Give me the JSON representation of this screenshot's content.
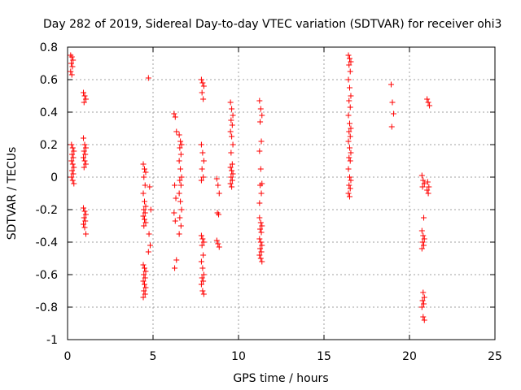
{
  "chart_data": {
    "type": "scatter",
    "title": "Day 282 of 2019, Sidereal Day-to-day VTEC variation (SDTVAR) for receiver ohi3",
    "xlabel": "GPS time / hours",
    "ylabel": "SDTVAR / TECUs",
    "xlim": [
      0,
      25
    ],
    "ylim": [
      -1,
      0.8
    ],
    "xticks": [
      0,
      5,
      10,
      15,
      20,
      25
    ],
    "xtick_labels": [
      "0",
      "5",
      "10",
      "15",
      "20",
      "25"
    ],
    "yticks": [
      -1,
      -0.8,
      -0.6,
      -0.4,
      -0.2,
      0,
      0.2,
      0.4,
      0.6,
      0.8
    ],
    "ytick_labels": [
      "-1",
      "-0.8",
      "-0.6",
      "-0.4",
      "-0.2",
      "0",
      "0.2",
      "0.4",
      "0.6",
      "0.8"
    ],
    "grid": true,
    "marker": "+",
    "color": "#ff0000",
    "clusters": [
      {
        "x": 0.25,
        "y": [
          0.75,
          0.74,
          0.72,
          0.7,
          0.68,
          0.65,
          0.63
        ]
      },
      {
        "x": 0.3,
        "y": [
          0.2,
          0.18,
          0.16,
          0.14,
          0.12,
          0.1,
          0.08,
          0.06,
          0.04,
          0.02,
          0.0,
          -0.02,
          -0.04
        ]
      },
      {
        "x": 1.0,
        "y": [
          0.52,
          0.5,
          0.48,
          0.46
        ]
      },
      {
        "x": 1.0,
        "y": [
          0.24,
          0.2,
          0.18,
          0.16,
          0.14,
          0.12,
          0.1,
          0.08,
          0.06
        ]
      },
      {
        "x": 1.0,
        "y": [
          -0.19,
          -0.21,
          -0.23,
          -0.25,
          -0.27,
          -0.29,
          -0.31,
          -0.35
        ]
      },
      {
        "x": 4.5,
        "y": [
          0.08,
          0.05,
          0.03,
          0.0,
          -0.05,
          -0.1,
          -0.15,
          -0.18,
          -0.2,
          -0.22,
          -0.24,
          -0.26,
          -0.28,
          -0.3
        ]
      },
      {
        "x": 4.5,
        "y": [
          -0.54,
          -0.56,
          -0.58,
          -0.6,
          -0.62,
          -0.64,
          -0.66,
          -0.68,
          -0.7,
          -0.72,
          -0.74
        ]
      },
      {
        "x": 4.8,
        "y": [
          0.61,
          -0.06,
          -0.2,
          -0.35,
          -0.42,
          -0.46
        ]
      },
      {
        "x": 6.3,
        "y": [
          0.39,
          0.37,
          0.28,
          -0.05,
          -0.13,
          -0.22,
          -0.27,
          -0.51,
          -0.56
        ]
      },
      {
        "x": 6.6,
        "y": [
          0.26,
          0.22,
          0.2,
          0.18,
          0.14,
          0.1,
          0.05,
          0.0,
          -0.02,
          -0.05,
          -0.1,
          -0.15,
          -0.2,
          -0.25,
          -0.3,
          -0.35
        ]
      },
      {
        "x": 7.9,
        "y": [
          0.6,
          0.58,
          0.56,
          0.52,
          0.48,
          0.2,
          0.15,
          0.1,
          0.05,
          0.0,
          -0.02
        ]
      },
      {
        "x": 7.9,
        "y": [
          -0.36,
          -0.38,
          -0.4,
          -0.42,
          -0.48,
          -0.52,
          -0.56,
          -0.6,
          -0.62,
          -0.64,
          -0.66,
          -0.7,
          -0.72
        ]
      },
      {
        "x": 8.8,
        "y": [
          -0.01,
          -0.05,
          -0.1,
          -0.22,
          -0.23,
          -0.39,
          -0.41,
          -0.43
        ]
      },
      {
        "x": 9.6,
        "y": [
          0.46,
          0.42,
          0.38,
          0.35,
          0.32,
          0.28,
          0.25,
          0.2,
          0.15,
          0.08,
          0.06,
          0.04,
          0.02,
          0.0,
          -0.02,
          -0.04,
          -0.06
        ]
      },
      {
        "x": 11.3,
        "y": [
          0.47,
          0.42,
          0.38,
          0.34,
          0.22,
          0.16,
          0.05,
          -0.04,
          -0.05,
          -0.1,
          -0.16
        ]
      },
      {
        "x": 11.3,
        "y": [
          -0.25,
          -0.28,
          -0.3,
          -0.32,
          -0.34,
          -0.38,
          -0.4,
          -0.42,
          -0.44,
          -0.46,
          -0.48,
          -0.5,
          -0.52
        ]
      },
      {
        "x": 16.5,
        "y": [
          0.75,
          0.73,
          0.71,
          0.69,
          0.65,
          0.6,
          0.55,
          0.5,
          0.47,
          0.43,
          0.38,
          0.33,
          0.3,
          0.28,
          0.25,
          0.22,
          0.18,
          0.15,
          0.12,
          0.1,
          0.05,
          0.0,
          -0.02,
          -0.05,
          -0.07,
          -0.1,
          -0.12
        ]
      },
      {
        "x": 19.0,
        "y": [
          0.57,
          0.46,
          0.39,
          0.31
        ]
      },
      {
        "x": 20.8,
        "y": [
          0.01,
          -0.02,
          -0.04,
          -0.06,
          -0.25,
          -0.33,
          -0.36,
          -0.38,
          -0.4,
          -0.42,
          -0.44,
          -0.71,
          -0.74,
          -0.76,
          -0.78,
          -0.8,
          -0.86,
          -0.88
        ]
      },
      {
        "x": 21.1,
        "y": [
          0.48,
          0.46,
          0.44,
          -0.03,
          -0.06,
          -0.08,
          -0.1
        ]
      }
    ]
  }
}
